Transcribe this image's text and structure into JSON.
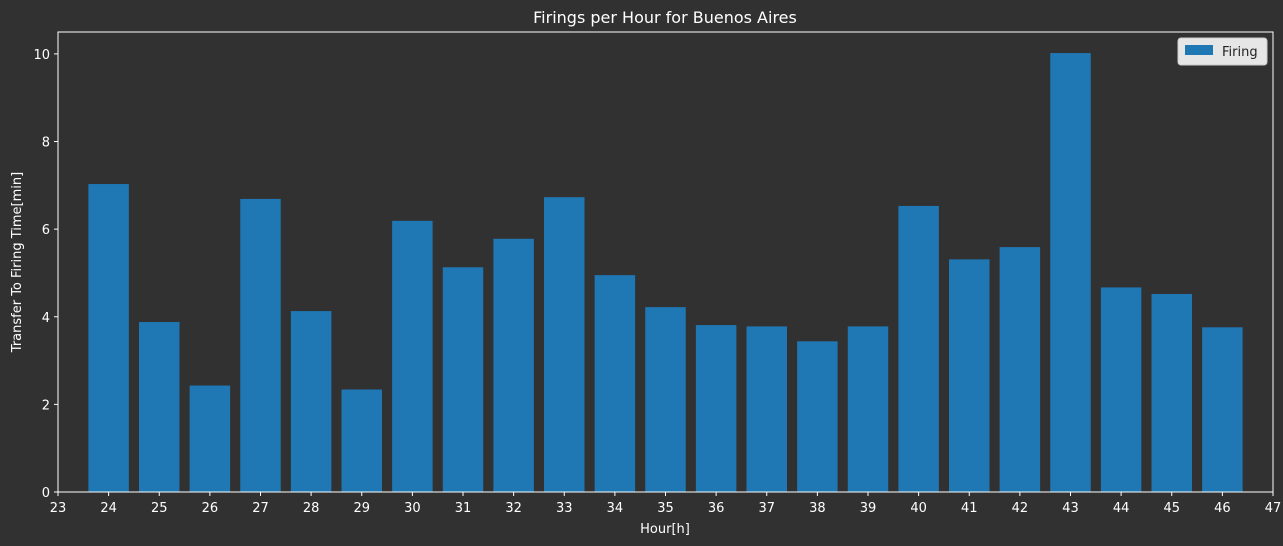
{
  "chart_data": {
    "type": "bar",
    "title": "Firings per Hour for Buenos Aires",
    "xlabel": "Hour[h]",
    "ylabel": "Transfer To Firing Time[min]",
    "xlim": [
      23,
      47
    ],
    "ylim": [
      0,
      10.5
    ],
    "x_ticks": [
      23,
      24,
      25,
      26,
      27,
      28,
      29,
      30,
      31,
      32,
      33,
      34,
      35,
      36,
      37,
      38,
      39,
      40,
      41,
      42,
      43,
      44,
      45,
      46,
      47
    ],
    "y_ticks": [
      0,
      2,
      4,
      6,
      8,
      10
    ],
    "grid": false,
    "legend_position": "top-right",
    "series": [
      {
        "name": "Firing",
        "color": "#1f77b4",
        "x": [
          24,
          25,
          26,
          27,
          28,
          29,
          30,
          31,
          32,
          33,
          34,
          35,
          36,
          37,
          38,
          39,
          40,
          41,
          42,
          43,
          44,
          45,
          46
        ],
        "values": [
          7.03,
          3.88,
          2.43,
          6.69,
          4.13,
          2.34,
          6.19,
          5.13,
          5.78,
          6.73,
          4.95,
          4.22,
          3.81,
          3.78,
          3.44,
          3.78,
          6.53,
          5.31,
          5.59,
          10.02,
          4.67,
          4.52,
          3.76
        ]
      }
    ]
  }
}
